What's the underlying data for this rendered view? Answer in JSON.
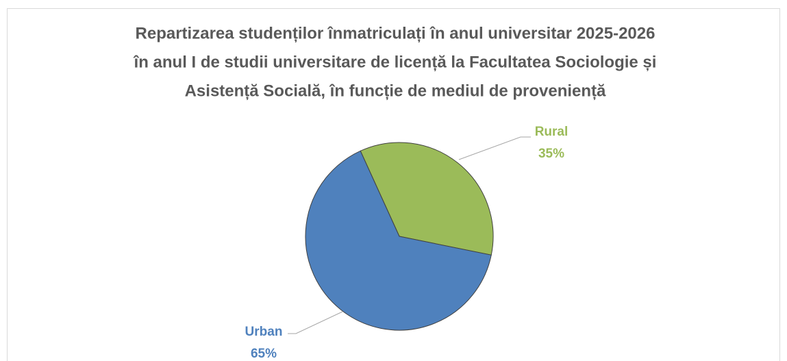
{
  "chart_data": {
    "type": "pie",
    "title": [
      "Repartizarea studenților înmatriculați în anul universitar 2025-2026",
      "în anul I de studii universitare de licență la Facultatea Sociologie și",
      "Asistență Socială, în funcție de mediul de proveniență"
    ],
    "categories": [
      "Rural",
      "Urban"
    ],
    "values": [
      35,
      65
    ],
    "value_labels": [
      "35%",
      "65%"
    ],
    "colors": [
      "#9bbb59",
      "#4f81bd"
    ]
  }
}
